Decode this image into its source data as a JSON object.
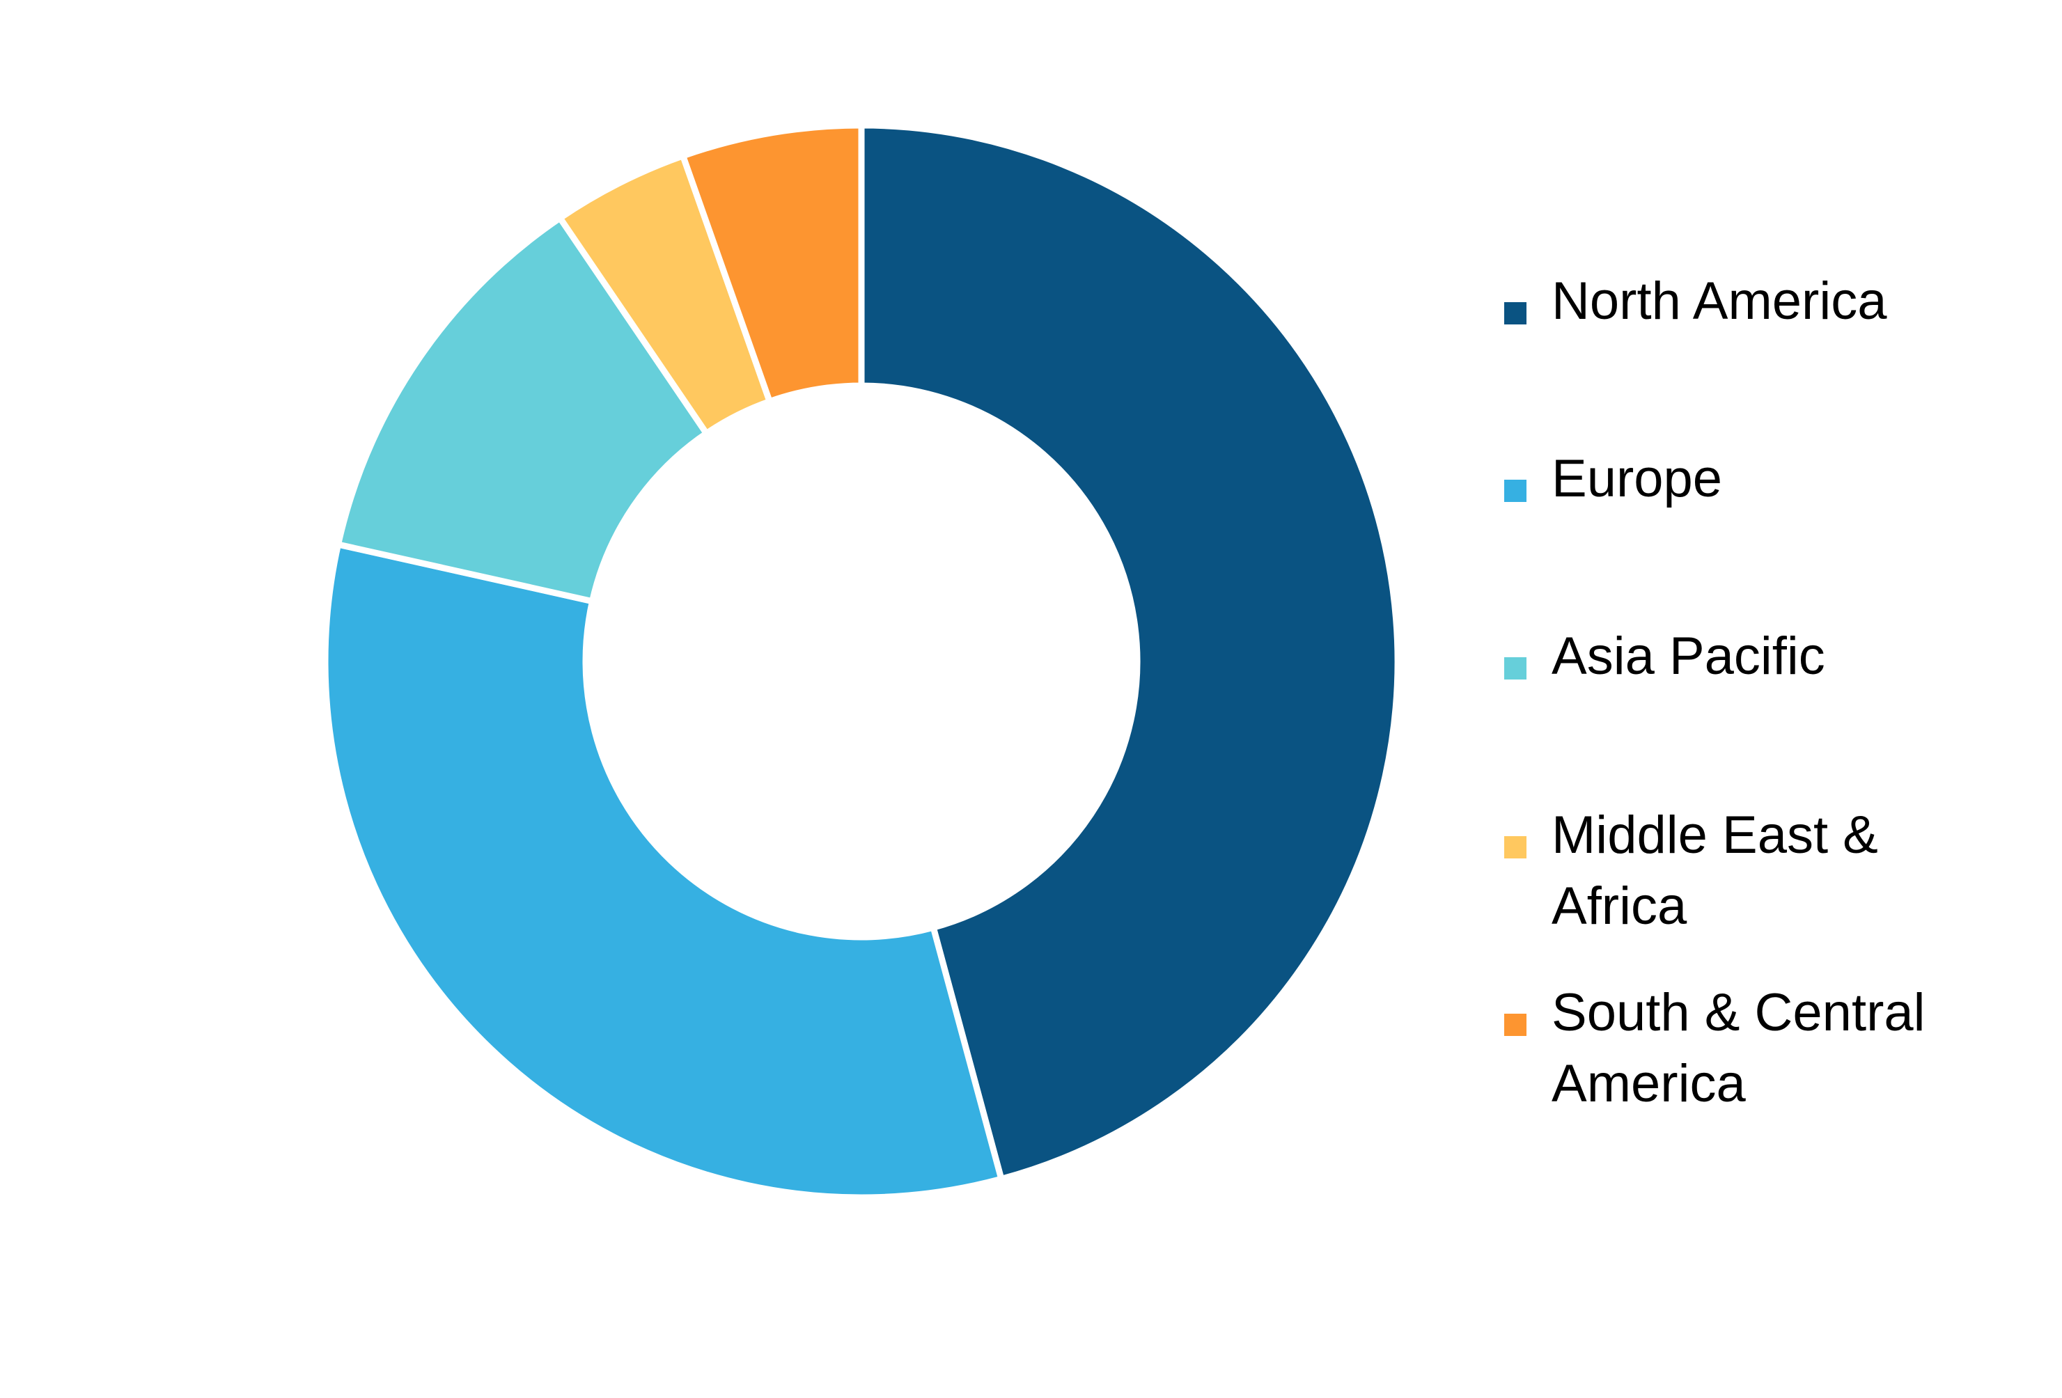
{
  "chart_data": {
    "type": "donut",
    "categories": [
      "North America",
      "Europe",
      "Asia Pacific",
      "Middle East & Africa",
      "South & Central America"
    ],
    "values": [
      45.8,
      32.7,
      12.0,
      4.1,
      5.4
    ],
    "colors": [
      "#0a5382",
      "#36b0e2",
      "#66cfda",
      "#ffc85f",
      "#fd9530"
    ],
    "legend": "right"
  }
}
